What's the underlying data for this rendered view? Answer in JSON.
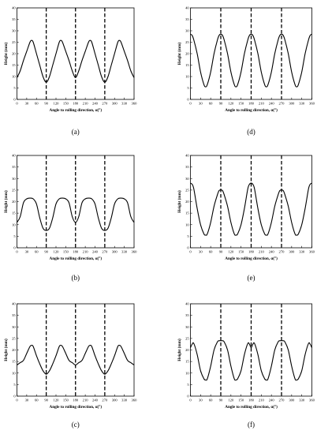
{
  "chart_data": [
    {
      "panel": "(a)",
      "type": "line",
      "xlabel": "Angle to rolling direction, α(°)",
      "ylabel": "Height (mm)",
      "xlim": [
        0,
        360
      ],
      "ylim": [
        0,
        40
      ],
      "xticks": [
        0,
        30,
        60,
        90,
        120,
        150,
        180,
        210,
        240,
        270,
        300,
        330,
        360
      ],
      "yticks": [
        0,
        5,
        10,
        15,
        20,
        25,
        30,
        35,
        40
      ],
      "dashed_lines_x": [
        90,
        180,
        270
      ],
      "x": [
        0,
        10,
        20,
        30,
        40,
        45,
        50,
        60,
        70,
        80,
        90,
        100,
        110,
        120,
        130,
        135,
        140,
        150,
        160,
        170,
        180,
        190,
        200,
        210,
        220,
        225,
        230,
        240,
        250,
        260,
        270,
        280,
        290,
        300,
        310,
        315,
        320,
        330,
        340,
        350,
        360
      ],
      "y": [
        9.5,
        12.5,
        17,
        21,
        25,
        25.8,
        25,
        20,
        15,
        10,
        7.5,
        10,
        15,
        20,
        25,
        25.8,
        25,
        21,
        17,
        12.5,
        9.5,
        12.5,
        17,
        21,
        25,
        25.8,
        25,
        20,
        15,
        10,
        7.5,
        10,
        15,
        20,
        25,
        25.8,
        25,
        21,
        17,
        12.5,
        9.5
      ]
    },
    {
      "panel": "(b)",
      "type": "line",
      "xlabel": "Angle to rolling direction, α(°)",
      "ylabel": "Height (mm)",
      "xlim": [
        0,
        360
      ],
      "ylim": [
        0,
        40
      ],
      "xticks": [
        0,
        30,
        60,
        90,
        120,
        150,
        180,
        210,
        240,
        270,
        300,
        330,
        360
      ],
      "yticks": [
        0,
        5,
        10,
        15,
        20,
        25,
        30,
        35,
        40
      ],
      "dashed_lines_x": [
        90,
        180,
        270
      ],
      "x": [
        0,
        10,
        20,
        30,
        40,
        50,
        60,
        70,
        80,
        90,
        100,
        110,
        120,
        130,
        140,
        150,
        160,
        170,
        180,
        190,
        200,
        210,
        220,
        230,
        240,
        250,
        260,
        270,
        280,
        290,
        300,
        310,
        320,
        330,
        340,
        350,
        360
      ],
      "y": [
        11,
        13.5,
        19.5,
        21.2,
        21.5,
        21.2,
        19,
        13,
        8.5,
        7.5,
        8.5,
        13,
        19,
        21.2,
        21.5,
        21.2,
        19.5,
        13.5,
        11,
        13.5,
        19.5,
        21.2,
        21.5,
        21.2,
        19,
        13,
        8.5,
        7.5,
        8.5,
        13,
        19,
        21.2,
        21.5,
        21.2,
        19.5,
        13.5,
        11
      ]
    },
    {
      "panel": "(c)",
      "type": "line",
      "xlabel": "Angle to rolling direction, α(°)",
      "ylabel": "Height (mm)",
      "xlim": [
        0,
        360
      ],
      "ylim": [
        0,
        40
      ],
      "xticks": [
        0,
        30,
        60,
        90,
        120,
        150,
        180,
        210,
        240,
        270,
        300,
        330,
        360
      ],
      "yticks": [
        0,
        5,
        10,
        15,
        20,
        25,
        30,
        35,
        40
      ],
      "dashed_lines_x": [
        90,
        180,
        270
      ],
      "x": [
        0,
        10,
        20,
        30,
        40,
        45,
        50,
        60,
        70,
        80,
        90,
        100,
        110,
        120,
        130,
        135,
        140,
        150,
        160,
        170,
        180,
        190,
        200,
        210,
        220,
        225,
        230,
        240,
        250,
        260,
        270,
        280,
        290,
        300,
        310,
        315,
        320,
        330,
        340,
        350,
        360
      ],
      "y": [
        13.5,
        14.5,
        15.5,
        18.5,
        21.5,
        22,
        21.5,
        17.5,
        14,
        11,
        9.5,
        11,
        14,
        17.5,
        21.5,
        22,
        21.5,
        18.5,
        15.5,
        14.5,
        13.5,
        14.5,
        15.5,
        18.5,
        21.5,
        22,
        21.5,
        17.5,
        14,
        11,
        9.5,
        11,
        14,
        17.5,
        21.5,
        22,
        21.5,
        18.5,
        15.5,
        14.5,
        13.5
      ]
    },
    {
      "panel": "(d)",
      "type": "line",
      "xlabel": "Angle to rolling direction, α(°)",
      "ylabel": "Height (mm)",
      "xlim": [
        0,
        360
      ],
      "ylim": [
        0,
        40
      ],
      "xticks": [
        0,
        30,
        60,
        90,
        120,
        150,
        180,
        210,
        240,
        270,
        300,
        330,
        360
      ],
      "yticks": [
        0,
        5,
        10,
        15,
        20,
        25,
        30,
        35,
        40
      ],
      "dashed_lines_x": [
        90,
        180,
        270
      ],
      "x": [
        0,
        5,
        10,
        20,
        30,
        40,
        45,
        50,
        60,
        70,
        80,
        85,
        90,
        95,
        100,
        110,
        120,
        130,
        135,
        140,
        150,
        160,
        170,
        175,
        180,
        185,
        190,
        200,
        210,
        220,
        225,
        230,
        240,
        250,
        260,
        265,
        270,
        275,
        280,
        290,
        300,
        310,
        315,
        320,
        330,
        340,
        350,
        355,
        360
      ],
      "y": [
        28.5,
        28,
        26,
        20,
        12,
        6.5,
        5.5,
        6.5,
        12,
        20,
        26,
        28,
        28.5,
        28,
        26,
        20,
        12,
        6.5,
        5.5,
        6.5,
        12,
        20,
        26,
        28,
        28.5,
        28,
        26,
        20,
        12,
        6.5,
        5.5,
        6.5,
        12,
        20,
        26,
        28,
        28.5,
        28,
        26,
        20,
        12,
        6.5,
        5.5,
        6.5,
        12,
        20,
        26,
        28,
        28.5
      ]
    },
    {
      "panel": "(e)",
      "type": "line",
      "xlabel": "Angle to rolling direction, α(°)",
      "ylabel": "Height (mm)",
      "xlim": [
        0,
        360
      ],
      "ylim": [
        0,
        40
      ],
      "xticks": [
        0,
        30,
        60,
        90,
        120,
        150,
        180,
        210,
        240,
        270,
        300,
        330,
        360
      ],
      "yticks": [
        0,
        5,
        10,
        15,
        20,
        25,
        30,
        35,
        40
      ],
      "dashed_lines_x": [
        90,
        180,
        270
      ],
      "x": [
        0,
        5,
        10,
        20,
        30,
        40,
        45,
        50,
        60,
        70,
        80,
        85,
        90,
        95,
        100,
        110,
        120,
        130,
        135,
        140,
        150,
        160,
        170,
        175,
        180,
        185,
        190,
        200,
        210,
        220,
        225,
        230,
        240,
        250,
        260,
        265,
        270,
        275,
        280,
        290,
        300,
        310,
        315,
        320,
        330,
        340,
        350,
        355,
        360
      ],
      "y": [
        28,
        27.5,
        25.5,
        17,
        10,
        6,
        5.5,
        6,
        11,
        18,
        23,
        24.8,
        25,
        24.8,
        23,
        18,
        11,
        6,
        5.5,
        6,
        10,
        17,
        25.5,
        27.5,
        28,
        27.5,
        25.5,
        17,
        10,
        6,
        5.5,
        6,
        11,
        18,
        23,
        24.8,
        25,
        24.8,
        23,
        18,
        11,
        6,
        5.5,
        6,
        10,
        17,
        25.5,
        27.5,
        28
      ]
    },
    {
      "panel": "(f)",
      "type": "line",
      "xlabel": "Angle to rolling direction, α(°)",
      "ylabel": "Height (mm)",
      "xlim": [
        0,
        360
      ],
      "ylim": [
        0,
        40
      ],
      "xticks": [
        0,
        30,
        60,
        90,
        120,
        150,
        180,
        210,
        240,
        270,
        300,
        330,
        360
      ],
      "yticks": [
        0,
        5,
        10,
        15,
        20,
        25,
        30,
        35,
        40
      ],
      "dashed_lines_x": [
        90,
        180,
        270
      ],
      "x": [
        0,
        5,
        10,
        20,
        30,
        40,
        45,
        50,
        60,
        70,
        80,
        85,
        90,
        95,
        100,
        110,
        120,
        130,
        135,
        140,
        150,
        160,
        170,
        175,
        180,
        185,
        190,
        200,
        210,
        220,
        225,
        230,
        240,
        250,
        260,
        265,
        270,
        275,
        280,
        290,
        300,
        310,
        315,
        320,
        330,
        340,
        350,
        355,
        360
      ],
      "y": [
        21,
        22.5,
        22.8,
        18,
        11,
        7.5,
        7,
        7.5,
        13,
        20,
        23.5,
        24,
        24,
        24,
        23.5,
        20,
        13,
        7.5,
        7,
        7.5,
        11,
        18,
        22.8,
        22.5,
        21,
        22.5,
        22.8,
        18,
        11,
        7.5,
        7,
        7.5,
        13,
        20,
        23.5,
        24,
        24,
        24,
        23.5,
        20,
        13,
        7.5,
        7,
        7.5,
        11,
        18,
        22.8,
        22.5,
        21
      ]
    }
  ]
}
